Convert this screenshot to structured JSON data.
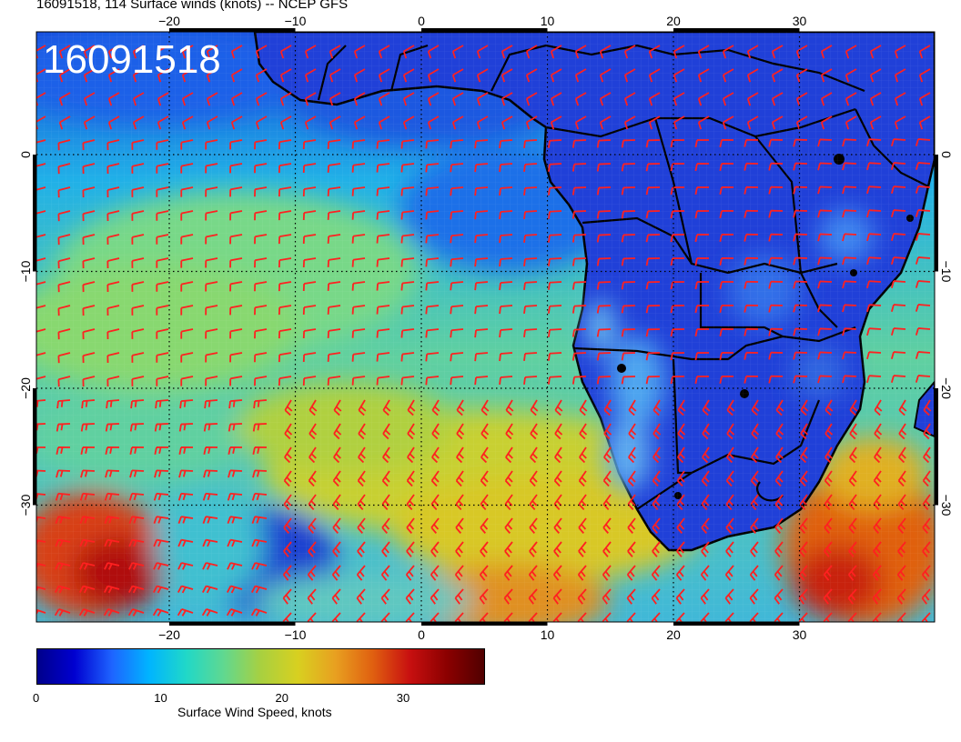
{
  "title": "16091518, 114 Surface winds (knots) -- NCEP GFS",
  "stamp": "16091518",
  "lon_ticks": [
    "−20",
    "−10",
    "0",
    "10",
    "20",
    "30"
  ],
  "lat_ticks": [
    "0",
    "−10",
    "−20",
    "−30"
  ],
  "colorbar": {
    "title": "Surface Wind Speed, knots",
    "labels": [
      "0",
      "10",
      "20",
      "30"
    ],
    "min": 0,
    "max": 37,
    "colors": [
      "#00008b",
      "#0000d0",
      "#1e64ff",
      "#00b4ff",
      "#20d8c8",
      "#60d890",
      "#a8d040",
      "#d8d020",
      "#e8a020",
      "#e06010",
      "#c81010",
      "#8b0000",
      "#500000"
    ]
  },
  "colors": {
    "barb": "#ff2020",
    "ocean_calm": "#2858e0",
    "land": "#2040d0",
    "coast": "#000000"
  }
}
